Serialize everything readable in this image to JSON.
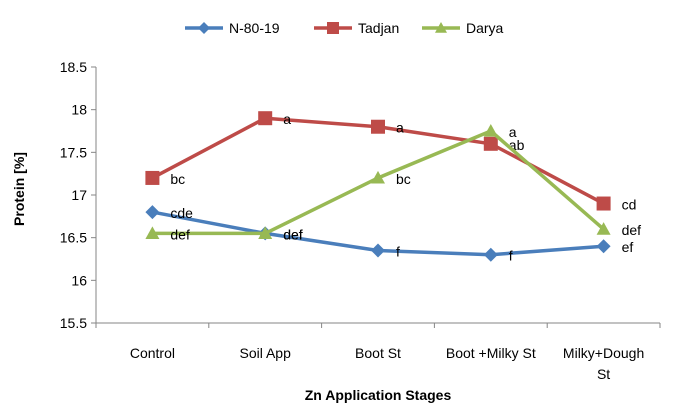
{
  "chart_data": {
    "type": "line",
    "title": "",
    "xlabel": "Zn Application Stages",
    "ylabel": "Protein  [%]",
    "categories": [
      [
        "Control"
      ],
      [
        "Soil App"
      ],
      [
        "Boot St"
      ],
      [
        "Boot +Milky St"
      ],
      [
        "Milky+Dough",
        "St"
      ]
    ],
    "ylim": [
      15.5,
      18.5
    ],
    "yticks": [
      "15.5",
      "16",
      "16.5",
      "17",
      "17.5",
      "18",
      "18.5"
    ],
    "grid": false,
    "legend_position": "top",
    "series": [
      {
        "name": "N-80-19",
        "color": "#4a7ebb",
        "marker": "diamond",
        "values": [
          16.8,
          16.55,
          16.35,
          16.3,
          16.4
        ],
        "labels": [
          "cde",
          "def",
          "f",
          "f",
          "ef"
        ]
      },
      {
        "name": "Tadjan",
        "color": "#be4b48",
        "marker": "square",
        "values": [
          17.2,
          17.9,
          17.8,
          17.6,
          16.9
        ],
        "labels": [
          "bc",
          "a",
          "a",
          "ab",
          "cd"
        ]
      },
      {
        "name": "Darya",
        "color": "#98b954",
        "marker": "triangle",
        "values": [
          16.55,
          16.55,
          17.2,
          17.75,
          16.6
        ],
        "labels": [
          "def",
          "def",
          "bc",
          "a",
          "def"
        ]
      }
    ]
  }
}
